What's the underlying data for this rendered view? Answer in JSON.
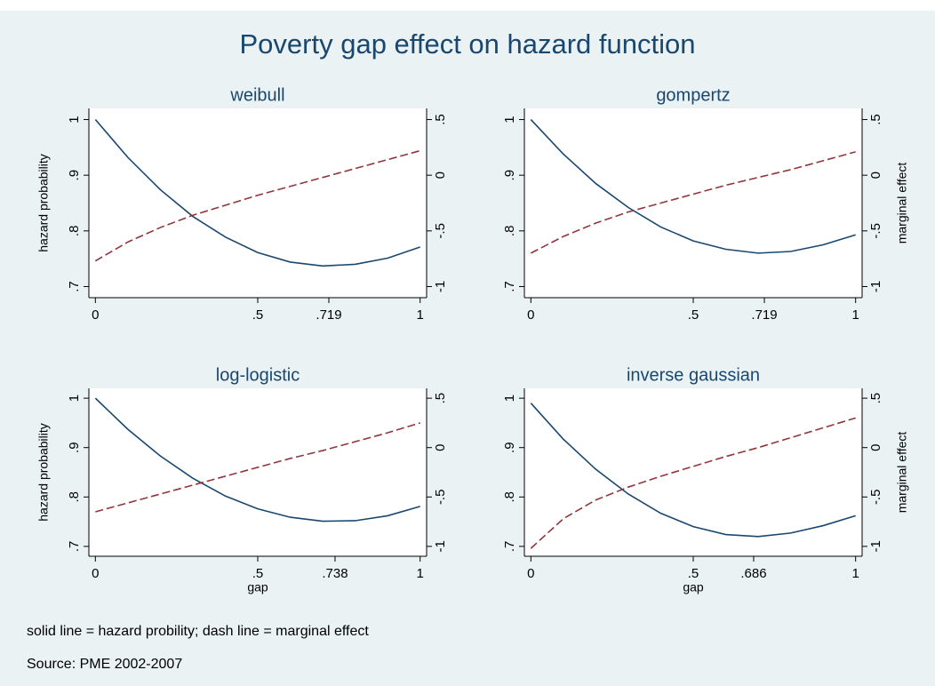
{
  "title": "Poverty gap effect on hazard function",
  "notes": [
    "solid line = hazard probility; dash line = marginal effect",
    "Source: PME 2002-2007"
  ],
  "chart_data": [
    {
      "type": "line",
      "title": "weibull",
      "ylabel": "hazard probability",
      "x": [
        0,
        0.1,
        0.2,
        0.3,
        0.4,
        0.5,
        0.6,
        0.7,
        0.8,
        0.9,
        1
      ],
      "series": [
        {
          "color": "#1a476f",
          "style": "solid",
          "values": [
            1.0,
            0.932,
            0.874,
            0.826,
            0.789,
            0.761,
            0.744,
            0.737,
            0.74,
            0.751,
            0.771
          ]
        },
        {
          "color": "#90353b",
          "style": "dashed",
          "axis": "y2",
          "values": [
            -0.77,
            -0.6,
            -0.47,
            -0.36,
            -0.27,
            -0.18,
            -0.1,
            -0.02,
            0.06,
            0.14,
            0.22
          ]
        }
      ],
      "xlim": [
        -0.02,
        1.02
      ],
      "xticks": [
        0,
        {
          "value": 0.5,
          "label": ".5"
        },
        {
          "value": 0.719,
          "label": ".719"
        },
        1
      ],
      "ylim": [
        0.68,
        1.02
      ],
      "yticks": [
        {
          "value": 0.7,
          "label": ".7"
        },
        {
          "value": 0.8,
          "label": ".8"
        },
        {
          "value": 0.9,
          "label": ".9"
        },
        1
      ],
      "y2lim": [
        -1.1,
        0.6
      ],
      "y2ticks": [
        -1,
        {
          "value": -0.5,
          "label": "-.5"
        },
        0,
        {
          "value": 0.5,
          "label": ".5"
        }
      ]
    },
    {
      "type": "line",
      "title": "gompertz",
      "y2label": "marginal effect",
      "x": [
        0,
        0.1,
        0.2,
        0.3,
        0.4,
        0.5,
        0.6,
        0.7,
        0.8,
        0.9,
        1
      ],
      "series": [
        {
          "color": "#1a476f",
          "style": "solid",
          "values": [
            1.0,
            0.938,
            0.885,
            0.842,
            0.807,
            0.782,
            0.767,
            0.76,
            0.763,
            0.775,
            0.793
          ]
        },
        {
          "color": "#90353b",
          "style": "dashed",
          "axis": "y2",
          "values": [
            -0.7,
            -0.55,
            -0.43,
            -0.33,
            -0.25,
            -0.17,
            -0.09,
            -0.02,
            0.05,
            0.13,
            0.21
          ]
        }
      ],
      "xlim": [
        -0.02,
        1.02
      ],
      "xticks": [
        0,
        {
          "value": 0.5,
          "label": ".5"
        },
        {
          "value": 0.719,
          "label": ".719"
        },
        1
      ],
      "ylim": [
        0.68,
        1.02
      ],
      "yticks": [
        {
          "value": 0.7,
          "label": ".7"
        },
        {
          "value": 0.8,
          "label": ".8"
        },
        {
          "value": 0.9,
          "label": ".9"
        },
        1
      ],
      "y2lim": [
        -1.1,
        0.6
      ],
      "y2ticks": [
        -1,
        {
          "value": -0.5,
          "label": "-.5"
        },
        0,
        {
          "value": 0.5,
          "label": ".5"
        }
      ]
    },
    {
      "type": "line",
      "title": "log-logistic",
      "ylabel": "hazard probability",
      "xlabel": "gap",
      "x": [
        0,
        0.1,
        0.2,
        0.3,
        0.4,
        0.5,
        0.6,
        0.7,
        0.8,
        0.9,
        1
      ],
      "series": [
        {
          "color": "#1a476f",
          "style": "solid",
          "values": [
            1.0,
            0.937,
            0.883,
            0.838,
            0.802,
            0.776,
            0.759,
            0.751,
            0.752,
            0.762,
            0.781
          ]
        },
        {
          "color": "#90353b",
          "style": "dashed",
          "axis": "y2",
          "values": [
            -0.65,
            -0.56,
            -0.47,
            -0.38,
            -0.29,
            -0.2,
            -0.11,
            -0.03,
            0.06,
            0.15,
            0.25
          ]
        }
      ],
      "xlim": [
        -0.02,
        1.02
      ],
      "xticks": [
        0,
        {
          "value": 0.5,
          "label": ".5"
        },
        {
          "value": 0.738,
          "label": ".738"
        },
        1
      ],
      "ylim": [
        0.68,
        1.02
      ],
      "yticks": [
        {
          "value": 0.7,
          "label": ".7"
        },
        {
          "value": 0.8,
          "label": ".8"
        },
        {
          "value": 0.9,
          "label": ".9"
        },
        1
      ],
      "y2lim": [
        -1.1,
        0.6
      ],
      "y2ticks": [
        -1,
        {
          "value": -0.5,
          "label": "-.5"
        },
        0,
        {
          "value": 0.5,
          "label": ".5"
        }
      ]
    },
    {
      "type": "line",
      "title": "inverse gaussian",
      "y2label": "marginal effect",
      "xlabel": "gap",
      "x": [
        0,
        0.1,
        0.2,
        0.3,
        0.4,
        0.5,
        0.6,
        0.7,
        0.8,
        0.9,
        1
      ],
      "series": [
        {
          "color": "#1a476f",
          "style": "solid",
          "values": [
            0.99,
            0.917,
            0.856,
            0.806,
            0.767,
            0.74,
            0.724,
            0.72,
            0.727,
            0.742,
            0.762
          ]
        },
        {
          "color": "#90353b",
          "style": "dashed",
          "axis": "y2",
          "values": [
            -1.02,
            -0.72,
            -0.53,
            -0.4,
            -0.29,
            -0.19,
            -0.09,
            0.0,
            0.1,
            0.2,
            0.3
          ]
        }
      ],
      "xlim": [
        -0.02,
        1.02
      ],
      "xticks": [
        0,
        {
          "value": 0.5,
          "label": ".5"
        },
        {
          "value": 0.686,
          "label": ".686"
        },
        1
      ],
      "ylim": [
        0.68,
        1.02
      ],
      "yticks": [
        {
          "value": 0.7,
          "label": ".7"
        },
        {
          "value": 0.8,
          "label": ".8"
        },
        {
          "value": 0.9,
          "label": ".9"
        },
        1
      ],
      "y2lim": [
        -1.1,
        0.6
      ],
      "y2ticks": [
        -1,
        {
          "value": -0.5,
          "label": "-.5"
        },
        0,
        {
          "value": 0.5,
          "label": ".5"
        }
      ]
    }
  ]
}
